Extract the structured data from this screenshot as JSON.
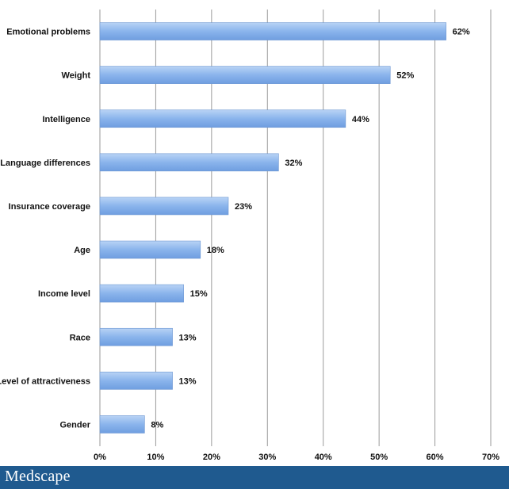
{
  "chart_data": {
    "type": "bar",
    "orientation": "horizontal",
    "categories": [
      "Emotional problems",
      "Weight",
      "Intelligence",
      "Language differences",
      "Insurance coverage",
      "Age",
      "Income level",
      "Race",
      "Level of attractiveness",
      "Gender"
    ],
    "values": [
      62,
      52,
      44,
      32,
      23,
      18,
      15,
      13,
      13,
      8
    ],
    "value_labels": [
      "62%",
      "52%",
      "44%",
      "32%",
      "23%",
      "18%",
      "15%",
      "13%",
      "13%",
      "8%"
    ],
    "xlim": [
      0,
      70
    ],
    "x_ticks": [
      0,
      10,
      20,
      30,
      40,
      50,
      60,
      70
    ],
    "x_tick_labels": [
      "0%",
      "10%",
      "20%",
      "30%",
      "40%",
      "50%",
      "60%",
      "70%"
    ],
    "grid": "vertical",
    "legend": "none",
    "bar_color": "#8ab4ec"
  },
  "footer": {
    "brand": "Medscape",
    "background_color": "#1f5a8f"
  }
}
